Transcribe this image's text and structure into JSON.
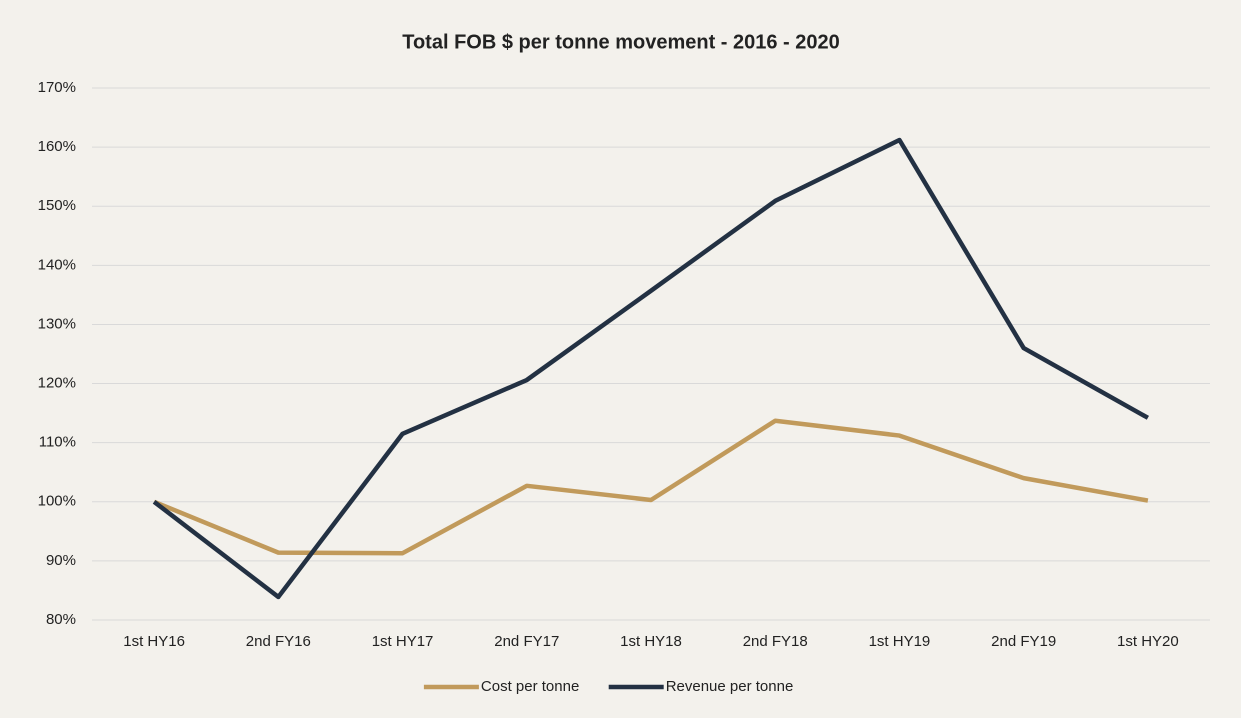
{
  "chart_data": {
    "type": "line",
    "title": "Total FOB $ per tonne movement - 2016 - 2020",
    "categories": [
      "1st HY16",
      "2nd FY16",
      "1st HY17",
      "2nd FY17",
      "1st HY18",
      "2nd FY18",
      "1st HY19",
      "2nd FY19",
      "1st HY20"
    ],
    "series": [
      {
        "name": "Cost per tonne",
        "color": "#c19a5b",
        "values": [
          100,
          91.4,
          91.3,
          102.7,
          100.3,
          113.7,
          111.2,
          104,
          100.2
        ]
      },
      {
        "name": "Revenue per tonne",
        "color": "#233143",
        "values": [
          100,
          83.9,
          111.5,
          120.6,
          135.7,
          150.9,
          161.2,
          126,
          114.2
        ]
      }
    ],
    "ylim": [
      80,
      170
    ],
    "yticks": [
      {
        "value": 80,
        "label": "80%"
      },
      {
        "value": 90,
        "label": "90%"
      },
      {
        "value": 100,
        "label": "100%"
      },
      {
        "value": 110,
        "label": "110%"
      },
      {
        "value": 120,
        "label": "120%"
      },
      {
        "value": 130,
        "label": "130%"
      },
      {
        "value": 140,
        "label": "140%"
      },
      {
        "value": 150,
        "label": "150%"
      },
      {
        "value": 160,
        "label": "160%"
      },
      {
        "value": 170,
        "label": "170%"
      }
    ],
    "grid": true,
    "legend": "bottom"
  }
}
